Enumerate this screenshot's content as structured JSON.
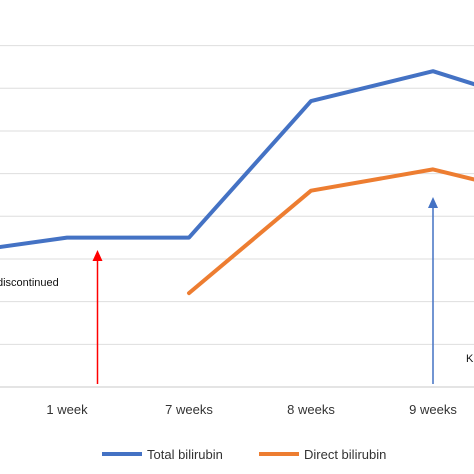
{
  "chart_data": {
    "type": "line",
    "categories": [
      "",
      "1 week",
      "7 weeks",
      "8 weeks",
      "9 weeks",
      ""
    ],
    "series": [
      {
        "name": "Total bilirubin",
        "color": "#4472C4",
        "values": [
          3.1,
          3.5,
          3.5,
          6.7,
          7.4,
          6.5
        ]
      },
      {
        "name": "Direct bilirubin",
        "color": "#ED7D31",
        "values": [
          null,
          null,
          2.2,
          4.6,
          5.1,
          4.4
        ]
      }
    ],
    "ylim": [
      0,
      8.6
    ],
    "grid": true,
    "legend_position": "bottom",
    "annotations": [
      {
        "text": "discontinued",
        "category_index": 0,
        "arrow_color": "#FF0000",
        "arrow_category": 1.25
      },
      {
        "text": "K",
        "category_index": 4,
        "arrow_color": "#4472C4",
        "arrow_category": 4.0
      }
    ]
  }
}
